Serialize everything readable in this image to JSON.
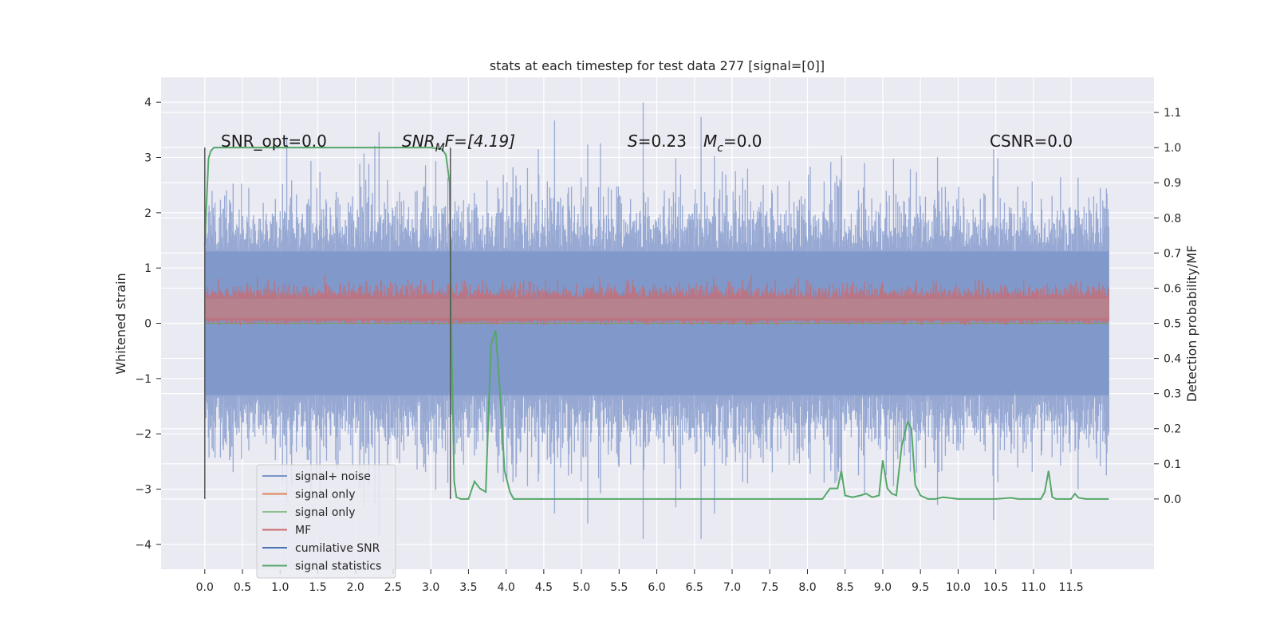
{
  "chart_data": {
    "type": "line",
    "title": "stats at each timestep for test data 277 [signal=[0]]",
    "xlabel": "",
    "ylabel_left": "Whitened strain",
    "ylabel_right": "Detection probability/MF",
    "xlim": [
      -0.58,
      12.6
    ],
    "ylim_left": [
      -4.45,
      4.45
    ],
    "ylim_right": [
      -0.2,
      1.2
    ],
    "x_ticks": [
      "0.0",
      "0.5",
      "1.0",
      "1.5",
      "2.0",
      "2.5",
      "3.0",
      "3.5",
      "4.0",
      "4.5",
      "5.0",
      "5.5",
      "6.0",
      "6.5",
      "7.0",
      "7.5",
      "8.0",
      "8.5",
      "9.0",
      "9.5",
      "10.0",
      "10.5",
      "11.0",
      "11.5"
    ],
    "y_left_ticks": [
      "−4",
      "−3",
      "−2",
      "−1",
      "0",
      "1",
      "2",
      "3",
      "4"
    ],
    "y_right_ticks": [
      "0.0",
      "0.1",
      "0.2",
      "0.3",
      "0.4",
      "0.5",
      "0.6",
      "0.7",
      "0.8",
      "0.9",
      "1.0",
      "1.1"
    ],
    "grid": true,
    "legend_position": "lower-left",
    "annotations": [
      "SNR_opt=0.0",
      "SNR_MF=[4.19]",
      "S=0.23",
      "M_c=0.0",
      "CSNR=0.0"
    ],
    "annotation_parts": {
      "snr_opt": "SNR_opt=0.0",
      "snr_mf_base": "SNR",
      "snr_mf_sub": "M",
      "snr_mf_rest": "F=[4.19]",
      "s_sym": "S",
      "s_val": "=0.23",
      "mc_sym": "M",
      "mc_sub": "c",
      "mc_val": "=0.0",
      "csnr": "CSNR=0.0"
    },
    "vertical_markers_x": [
      0.0,
      3.26
    ],
    "series": [
      {
        "name": "signal+ noise",
        "color": "#7b93c8",
        "style": "noise band, roughly ±1.3 with spikes to ±4",
        "x_range": [
          0.0,
          12.0
        ]
      },
      {
        "name": "signal only",
        "color": "#dd8452",
        "values_note": "0 throughout"
      },
      {
        "name": "signal only",
        "color": "#55a868",
        "values_note": "0 throughout"
      },
      {
        "name": "MF",
        "color": "#c44e52",
        "style": "band between about 0.5 and 0.6 on the right axis",
        "x_range": [
          0.0,
          12.0
        ]
      },
      {
        "name": "cumilative SNR",
        "color": "#4c72b0",
        "values_note": "0 throughout"
      },
      {
        "name": "signal statistics",
        "color": "#55a868",
        "axis": "right",
        "x": [
          0.0,
          0.02,
          0.05,
          0.08,
          0.12,
          0.2,
          1.0,
          2.0,
          3.0,
          3.15,
          3.2,
          3.25,
          3.28,
          3.31,
          3.34,
          3.4,
          3.5,
          3.58,
          3.65,
          3.73,
          3.8,
          3.86,
          3.92,
          3.98,
          4.05,
          4.1,
          5.0,
          6.0,
          7.0,
          8.0,
          8.2,
          8.3,
          8.4,
          8.45,
          8.5,
          8.6,
          8.7,
          8.78,
          8.86,
          8.95,
          9.0,
          9.06,
          9.12,
          9.18,
          9.25,
          9.33,
          9.38,
          9.43,
          9.5,
          9.6,
          9.7,
          9.8,
          10.0,
          10.5,
          10.7,
          10.8,
          11.0,
          11.1,
          11.15,
          11.2,
          11.25,
          11.3,
          11.5,
          11.55,
          11.6,
          11.7,
          11.8,
          11.9,
          12.0
        ],
        "y": [
          0.72,
          0.83,
          0.97,
          0.99,
          1.0,
          1.0,
          1.0,
          1.0,
          1.0,
          0.995,
          0.98,
          0.9,
          0.4,
          0.05,
          0.005,
          0.0,
          0.0,
          0.05,
          0.03,
          0.02,
          0.44,
          0.48,
          0.3,
          0.08,
          0.02,
          0.0,
          0.0,
          0.0,
          0.0,
          0.0,
          0.0,
          0.03,
          0.03,
          0.08,
          0.01,
          0.005,
          0.01,
          0.015,
          0.005,
          0.01,
          0.11,
          0.03,
          0.015,
          0.01,
          0.15,
          0.22,
          0.2,
          0.04,
          0.01,
          0.0,
          0.0,
          0.005,
          0.0,
          0.0,
          0.003,
          0.0,
          0.0,
          0.0,
          0.02,
          0.08,
          0.005,
          0.0,
          0.0,
          0.015,
          0.003,
          0.0,
          0.0,
          0.0,
          0.0
        ]
      }
    ],
    "legend": [
      {
        "label": "signal+ noise",
        "color": "#7b93c8"
      },
      {
        "label": "signal only",
        "color": "#dd8452"
      },
      {
        "label": "signal only",
        "color": "#8cc08e"
      },
      {
        "label": "MF",
        "color": "#c96b6e"
      },
      {
        "label": "cumilative SNR",
        "color": "#4c72b0"
      },
      {
        "label": "signal statistics",
        "color": "#55a868"
      }
    ]
  }
}
